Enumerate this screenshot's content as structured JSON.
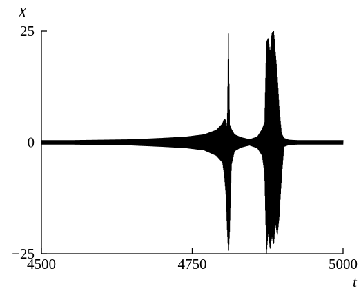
{
  "chart_data": {
    "type": "line",
    "title": "",
    "xlabel": "t",
    "ylabel": "X",
    "xlim": [
      4500,
      5000
    ],
    "ylim": [
      -25,
      25
    ],
    "x_ticks": [
      4500,
      4750,
      5000
    ],
    "y_ticks": [
      25,
      0,
      -25
    ],
    "x_tick_labels": [
      "4500",
      "4750",
      "5000"
    ],
    "y_tick_labels": [
      "25",
      "0",
      "−25"
    ],
    "grid": false,
    "legend": "none",
    "series": [
      {
        "color": "#000000",
        "envelope": {
          "t": [
            4500,
            4550,
            4600,
            4650,
            4700,
            4740,
            4770,
            4790,
            4800,
            4803,
            4806,
            4808,
            4810,
            4812,
            4815,
            4820,
            4830,
            4845,
            4858,
            4866,
            4870,
            4873,
            4876,
            4879,
            4882,
            4885,
            4888,
            4891,
            4894,
            4898,
            4902,
            4910,
            4925,
            4950,
            4975,
            5000
          ],
          "upper": [
            0.5,
            0.5,
            0.6,
            0.7,
            1.0,
            1.3,
            1.8,
            2.8,
            4.2,
            5.3,
            5.0,
            3.0,
            24.5,
            4.0,
            3.0,
            1.8,
            1.2,
            0.7,
            1.3,
            3.0,
            4.5,
            22.5,
            23.5,
            20.0,
            24.5,
            25.0,
            20.0,
            15.0,
            8.0,
            2.0,
            1.0,
            0.6,
            0.5,
            0.5,
            0.5,
            0.5
          ],
          "lower": [
            -0.5,
            -0.5,
            -0.6,
            -0.7,
            -1.0,
            -1.3,
            -1.8,
            -3.0,
            -4.5,
            -7.0,
            -12.0,
            -19.5,
            -25.0,
            -20.0,
            -5.0,
            -2.0,
            -1.2,
            -0.7,
            -1.3,
            -3.0,
            -7.0,
            -25.0,
            -20.0,
            -24.0,
            -21.0,
            -23.0,
            -18.0,
            -21.0,
            -17.0,
            -8.0,
            -1.0,
            -0.6,
            -0.5,
            -0.5,
            -0.5,
            -0.5
          ]
        }
      }
    ]
  }
}
